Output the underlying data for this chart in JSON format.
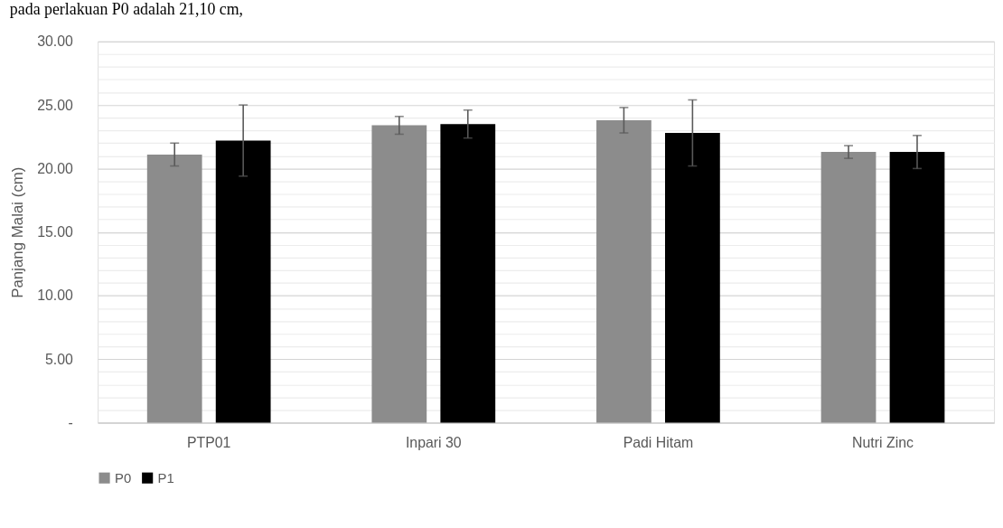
{
  "chart_data": {
    "type": "bar",
    "annotations": [
      "pada perlakuan P0 adalah 21,10 cm,"
    ],
    "ylabel": "Panjang Malai (cm)",
    "categories": [
      "PTP01",
      "Inpari 30",
      "Padi Hitam",
      "Nutri Zinc"
    ],
    "series": [
      {
        "name": "P0",
        "color": "#8c8c8c",
        "values": [
          21.1,
          23.4,
          23.8,
          21.3
        ],
        "errors": [
          0.9,
          0.7,
          1.0,
          0.5
        ]
      },
      {
        "name": "P1",
        "color": "#000000",
        "values": [
          22.2,
          23.5,
          22.8,
          21.3
        ],
        "errors": [
          2.8,
          1.1,
          2.6,
          1.3
        ]
      }
    ],
    "ylim": [
      0,
      30
    ],
    "yticks": [
      {
        "value": 0,
        "label": "-"
      },
      {
        "value": 1,
        "label": null
      },
      {
        "value": 2,
        "label": null
      },
      {
        "value": 3,
        "label": null
      },
      {
        "value": 4,
        "label": null
      },
      {
        "value": 5,
        "label": "5.00"
      },
      {
        "value": 6,
        "label": null
      },
      {
        "value": 7,
        "label": null
      },
      {
        "value": 8,
        "label": null
      },
      {
        "value": 9,
        "label": null
      },
      {
        "value": 10,
        "label": "10.00"
      },
      {
        "value": 11,
        "label": null
      },
      {
        "value": 12,
        "label": null
      },
      {
        "value": 13,
        "label": null
      },
      {
        "value": 14,
        "label": null
      },
      {
        "value": 15,
        "label": "15.00"
      },
      {
        "value": 16,
        "label": null
      },
      {
        "value": 17,
        "label": null
      },
      {
        "value": 18,
        "label": null
      },
      {
        "value": 19,
        "label": null
      },
      {
        "value": 20,
        "label": "20.00"
      },
      {
        "value": 21,
        "label": null
      },
      {
        "value": 22,
        "label": null
      },
      {
        "value": 23,
        "label": null
      },
      {
        "value": 24,
        "label": null
      },
      {
        "value": 25,
        "label": "25.00"
      },
      {
        "value": 26,
        "label": null
      },
      {
        "value": 27,
        "label": null
      },
      {
        "value": 28,
        "label": null
      },
      {
        "value": 29,
        "label": null
      },
      {
        "value": 30,
        "label": "30.00"
      }
    ],
    "grid": "y",
    "legend": "bottom"
  }
}
